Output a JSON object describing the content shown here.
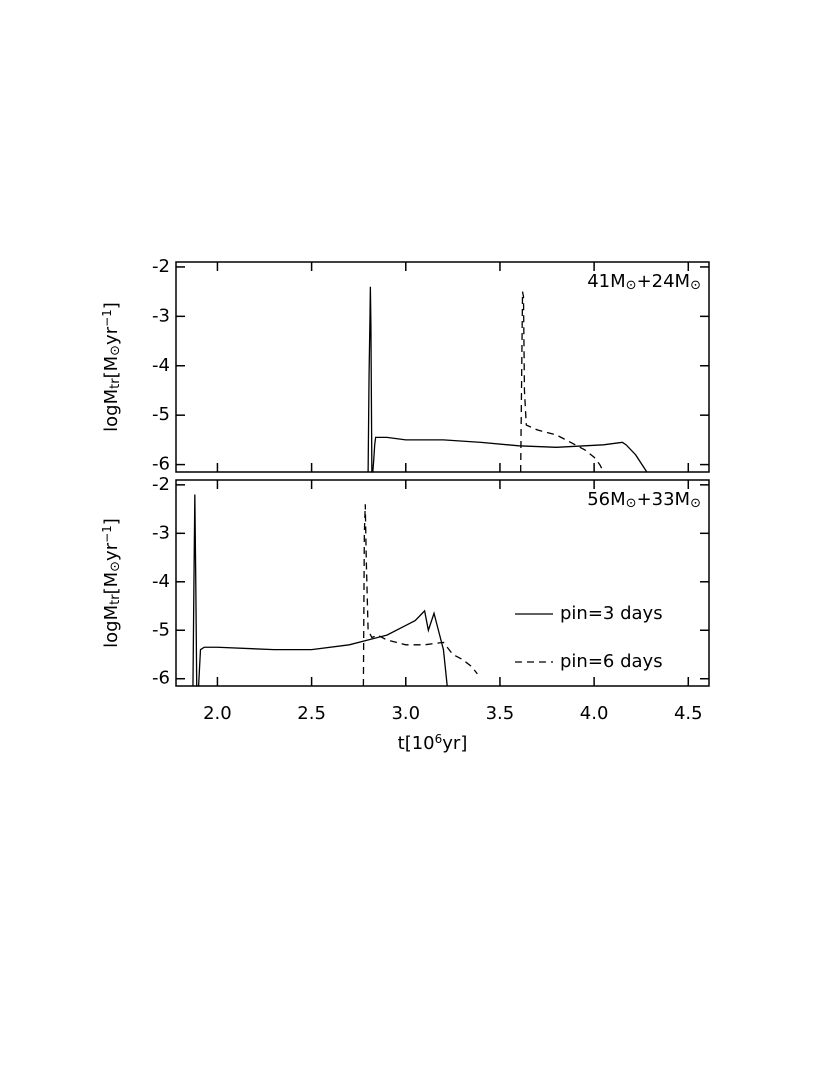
{
  "chart_data": [
    {
      "type": "line",
      "annotation": [
        {
          "text": "41M"
        },
        {
          "text": "⊙",
          "sub": true
        },
        {
          "text": "+24M"
        },
        {
          "text": "⊙",
          "sub": true
        }
      ],
      "ylabel": [
        {
          "text": "logM"
        },
        {
          "text": "tr",
          "sub": true
        },
        {
          "text": "[M"
        },
        {
          "text": "⊙",
          "sub": true
        },
        {
          "text": "yr"
        },
        {
          "text": "−1",
          "sup": true
        },
        {
          "text": "]"
        }
      ],
      "xlim": [
        1.78,
        4.61
      ],
      "ylim": [
        -6.15,
        -1.9
      ],
      "yticks": [
        -6,
        -5,
        -4,
        -3,
        -2
      ],
      "series": [
        {
          "color": "#000000",
          "dash": false,
          "x": [
            2.8,
            2.805,
            2.81,
            2.812,
            2.815,
            2.818,
            2.82,
            2.825,
            2.83,
            2.835,
            2.84,
            2.85,
            2.9,
            3.0,
            3.2,
            3.4,
            3.6,
            3.8,
            3.95,
            4.05,
            4.15,
            4.17,
            4.22,
            4.28
          ],
          "values": [
            -6.15,
            -4.2,
            -3.0,
            -2.4,
            -3.2,
            -5.0,
            -6.15,
            -6.15,
            -5.9,
            -5.6,
            -5.45,
            -5.45,
            -5.45,
            -5.5,
            -5.5,
            -5.55,
            -5.62,
            -5.65,
            -5.62,
            -5.6,
            -5.55,
            -5.6,
            -5.8,
            -6.15
          ]
        },
        {
          "color": "#000000",
          "dash": true,
          "x": [
            3.61,
            3.62,
            3.625,
            3.63,
            3.64,
            3.7,
            3.8,
            3.9,
            3.95,
            4.0,
            4.03,
            4.05
          ],
          "values": [
            -6.15,
            -2.5,
            -2.6,
            -4.5,
            -5.2,
            -5.3,
            -5.4,
            -5.6,
            -5.7,
            -5.85,
            -6.0,
            -6.15
          ]
        }
      ]
    },
    {
      "type": "line",
      "annotation": [
        {
          "text": "56M"
        },
        {
          "text": "⊙",
          "sub": true
        },
        {
          "text": "+33M"
        },
        {
          "text": "⊙",
          "sub": true
        }
      ],
      "ylabel": [
        {
          "text": "logM"
        },
        {
          "text": "tr",
          "sub": true
        },
        {
          "text": "[M"
        },
        {
          "text": "⊙",
          "sub": true
        },
        {
          "text": "yr"
        },
        {
          "text": "−1",
          "sup": true
        },
        {
          "text": "]"
        }
      ],
      "xlabel": [
        {
          "text": "t[10"
        },
        {
          "text": "6",
          "sup": true
        },
        {
          "text": "yr]"
        }
      ],
      "xlim": [
        1.78,
        4.61
      ],
      "ylim": [
        -6.15,
        -1.9
      ],
      "yticks": [
        -6,
        -5,
        -4,
        -3,
        -2
      ],
      "xticks": [
        {
          "value": 2,
          "label": "2.0"
        },
        {
          "value": 2.5,
          "label": "2.5"
        },
        {
          "value": 3,
          "label": "3.0"
        },
        {
          "value": 3.5,
          "label": "3.5"
        },
        {
          "value": 4,
          "label": "4.0"
        },
        {
          "value": 4.5,
          "label": "4.5"
        }
      ],
      "series": [
        {
          "name": "pin=3 days",
          "color": "#000000",
          "dash": false,
          "x": [
            1.87,
            1.875,
            1.88,
            1.885,
            1.89,
            1.9,
            1.91,
            1.93,
            2.0,
            2.3,
            2.5,
            2.7,
            2.9,
            3.0,
            3.05,
            3.1,
            3.12,
            3.15,
            3.18,
            3.2,
            3.22
          ],
          "values": [
            -6.15,
            -4.1,
            -2.2,
            -4.0,
            -6.15,
            -6.15,
            -5.4,
            -5.35,
            -5.35,
            -5.4,
            -5.4,
            -5.3,
            -5.1,
            -4.9,
            -4.8,
            -4.6,
            -5.0,
            -4.65,
            -5.1,
            -5.4,
            -6.15
          ]
        },
        {
          "name": "pin=6 days",
          "color": "#000000",
          "dash": true,
          "x": [
            2.775,
            2.78,
            2.785,
            2.79,
            2.8,
            2.82,
            2.85,
            2.9,
            3.0,
            3.1,
            3.2,
            3.25,
            3.3,
            3.35,
            3.38
          ],
          "values": [
            -6.15,
            -3.0,
            -2.4,
            -3.5,
            -5.0,
            -5.15,
            -5.1,
            -5.2,
            -5.3,
            -5.3,
            -5.25,
            -5.5,
            -5.6,
            -5.75,
            -5.9
          ]
        }
      ]
    }
  ]
}
